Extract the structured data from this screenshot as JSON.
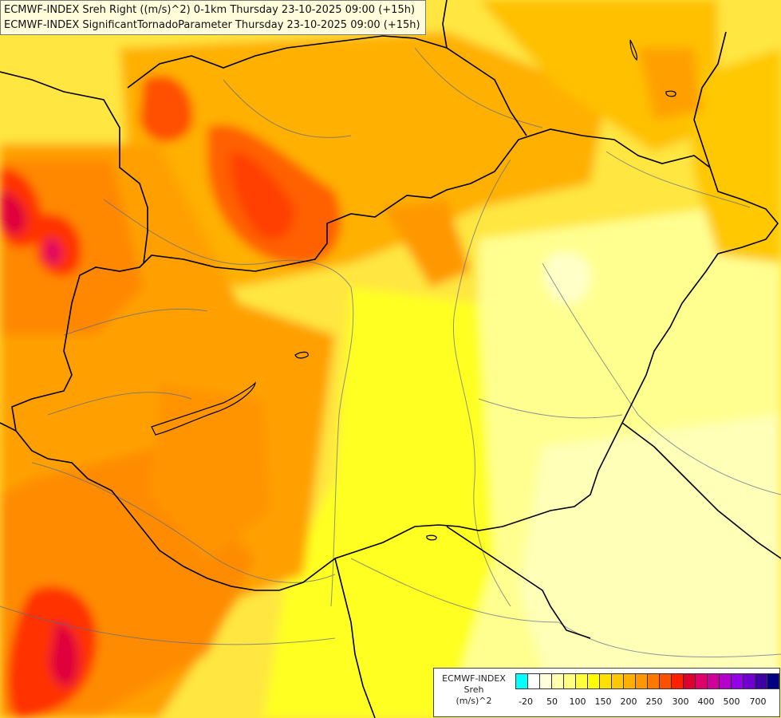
{
  "header": {
    "line1": "ECMWF-INDEX Sreh Right ((m/s)^2) 0-1km Thursday 23-10-2025 09:00 (+15h)",
    "line2": "ECMWF-INDEX SignificantTornadoParameter Thursday 23-10-2025 09:00 (+15h)"
  },
  "legend": {
    "title1": "ECMWF-INDEX",
    "title2": "Sreh",
    "unit": "(m/s)^2",
    "colors": [
      "#00ffff",
      "#ffffff",
      "#ffffd9",
      "#ffffb0",
      "#ffff80",
      "#ffff40",
      "#ffff00",
      "#ffe000",
      "#ffc800",
      "#ffb000",
      "#ff9800",
      "#ff7800",
      "#ff5000",
      "#ff2000",
      "#e00030",
      "#e0006a",
      "#d0009a",
      "#b400c8",
      "#9400e8",
      "#7000d0",
      "#4000a8",
      "#000080"
    ],
    "ticks": [
      "-20",
      "50",
      "100",
      "150",
      "200",
      "250",
      "300",
      "400",
      "500",
      "700"
    ]
  },
  "map": {
    "field_colors": [
      "#ffff80",
      "#ffff00",
      "#ffe000",
      "#ffc800",
      "#ffa800",
      "#ff8800",
      "#ff6000",
      "#ff3000",
      "#e00030",
      "#e0006a"
    ]
  }
}
